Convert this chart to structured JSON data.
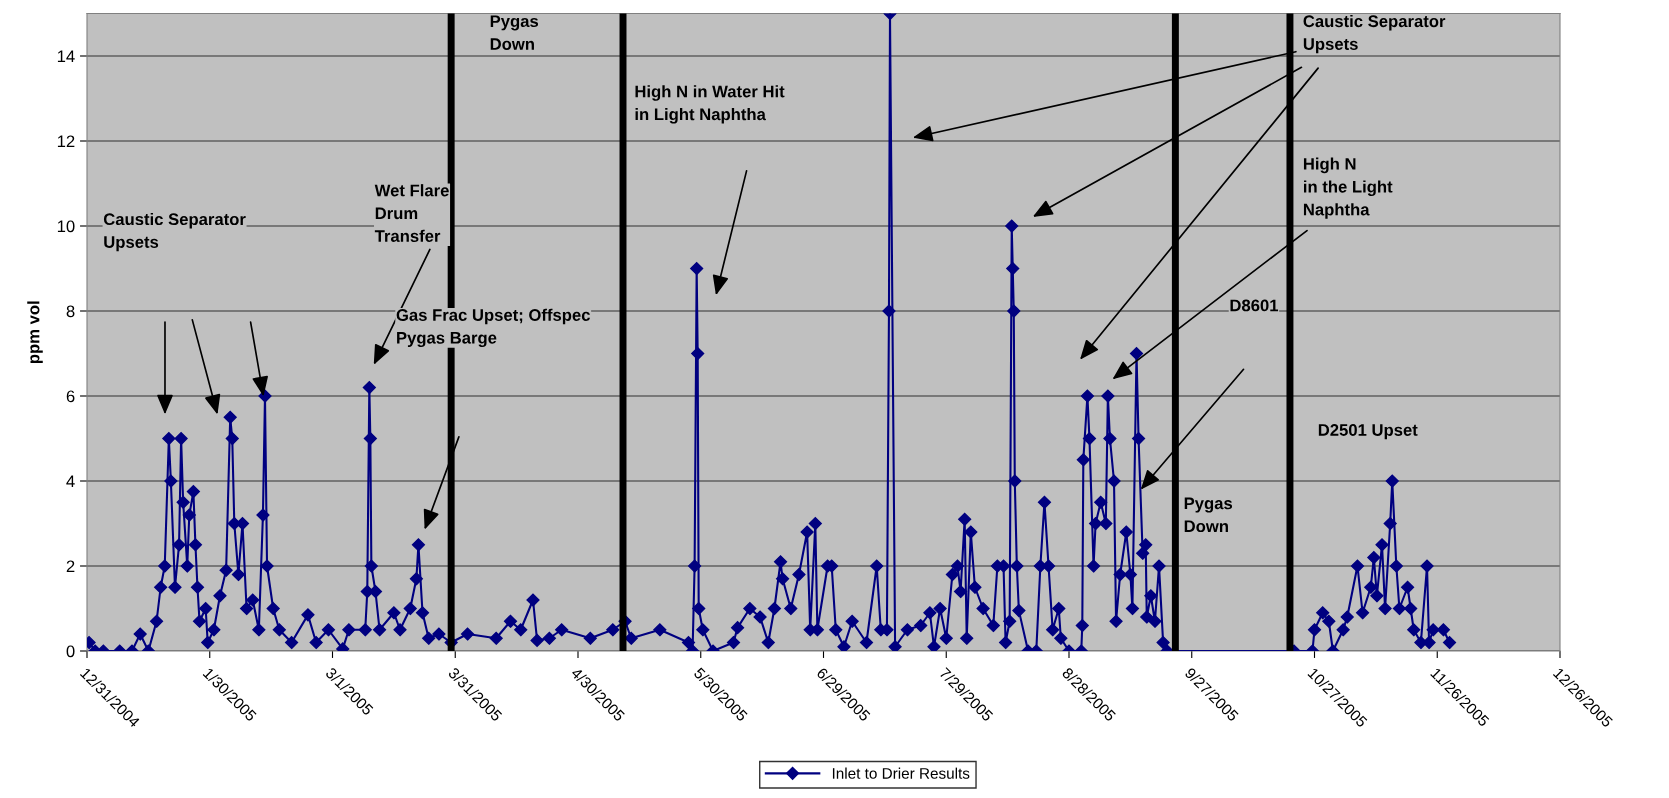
{
  "chart_data": {
    "type": "line",
    "ylabel": "ppm vol",
    "xlim": [
      "2004-12-31",
      "2005-12-26"
    ],
    "xticks": [
      {
        "value": "2004-12-31",
        "label": "12/31/2004"
      },
      {
        "value": "2005-01-30",
        "label": "1/30/2005"
      },
      {
        "value": "2005-03-01",
        "label": "3/1/2005"
      },
      {
        "value": "2005-03-31",
        "label": "3/31/2005"
      },
      {
        "value": "2005-04-30",
        "label": "4/30/2005"
      },
      {
        "value": "2005-05-30",
        "label": "5/30/2005"
      },
      {
        "value": "2005-06-29",
        "label": "6/29/2005"
      },
      {
        "value": "2005-07-29",
        "label": "7/29/2005"
      },
      {
        "value": "2005-08-28",
        "label": "8/28/2005"
      },
      {
        "value": "2005-09-27",
        "label": "9/27/2005"
      },
      {
        "value": "2005-10-27",
        "label": "10/27/2005"
      },
      {
        "value": "2005-11-26",
        "label": "11/26/2005"
      },
      {
        "value": "2005-12-26",
        "label": "12/26/2005"
      }
    ],
    "ylim": [
      0,
      15
    ],
    "yticks": [
      0,
      2,
      4,
      6,
      8,
      10,
      12,
      14
    ],
    "grid": "y",
    "legend": "bottom",
    "marker": "diamond",
    "line_style": "solid",
    "series": [
      {
        "name": "Inlet to Drier Results",
        "color": "#000080",
        "x": [
          "2004-12-31T12:00",
          "2005-01-02",
          "2005-01-04",
          "2005-01-08",
          "2005-01-11",
          "2005-01-13",
          "2005-01-15",
          "2005-01-17",
          "2005-01-18",
          "2005-01-19",
          "2005-01-20",
          "2005-01-20T12:00",
          "2005-01-21T12:00",
          "2005-01-22T12:00",
          "2005-01-23",
          "2005-01-23T12:00",
          "2005-01-24T12:00",
          "2005-01-25",
          "2005-01-26",
          "2005-01-26T12:00",
          "2005-01-27",
          "2005-01-27T12:00",
          "2005-01-29",
          "2005-01-29T12:00",
          "2005-01-31",
          "2005-02-01T12:00",
          "2005-02-03",
          "2005-02-04",
          "2005-02-04T12:00",
          "2005-02-05",
          "2005-02-06",
          "2005-02-07",
          "2005-02-08",
          "2005-02-09T12:00",
          "2005-02-11",
          "2005-02-12",
          "2005-02-12T12:00",
          "2005-02-13",
          "2005-02-14T12:00",
          "2005-02-16",
          "2005-02-19",
          "2005-02-23",
          "2005-02-25",
          "2005-02-28",
          "2005-03-03T12:00",
          "2005-03-05",
          "2005-03-09",
          "2005-03-09T12:00",
          "2005-03-10",
          "2005-03-10T06:00",
          "2005-03-10T12:00",
          "2005-03-11T12:00",
          "2005-03-12T12:00",
          "2005-03-16",
          "2005-03-17T12:00",
          "2005-03-20",
          "2005-03-21T12:00",
          "2005-03-22",
          "2005-03-23",
          "2005-03-24T12:00",
          "2005-03-27",
          "2005-03-30",
          "2005-04-03",
          "2005-04-10",
          "2005-04-13T12:00",
          "2005-04-16",
          "2005-04-19",
          "2005-04-20",
          "2005-04-23",
          "2005-04-26",
          "2005-05-03",
          "2005-05-08T12:00",
          "2005-05-11T12:00",
          "2005-05-13",
          "2005-05-20",
          "2005-05-27",
          "2005-05-28",
          "2005-05-28T12:00",
          "2005-05-29",
          "2005-05-29T06:00",
          "2005-05-29T12:00",
          "2005-05-30T12:00",
          "2005-06-02",
          "2005-06-07",
          "2005-06-08",
          "2005-06-11",
          "2005-06-13T12:00",
          "2005-06-15T12:00",
          "2005-06-17",
          "2005-06-18T12:00",
          "2005-06-19",
          "2005-06-21",
          "2005-06-23",
          "2005-06-25",
          "2005-06-25T18:00",
          "2005-06-27",
          "2005-06-27T12:00",
          "2005-06-30",
          "2005-07-01",
          "2005-07-02",
          "2005-07-04",
          "2005-07-06",
          "2005-07-09T12:00",
          "2005-07-12",
          "2005-07-13",
          "2005-07-14T12:00",
          "2005-07-15",
          "2005-07-15T06:00",
          "2005-07-16T12:00",
          "2005-07-19T12:00",
          "2005-07-22T18:00",
          "2005-07-25",
          "2005-07-26",
          "2005-07-27T12:00",
          "2005-07-29",
          "2005-07-30T12:00",
          "2005-07-31T18:00",
          "2005-08-01T12:00",
          "2005-08-02T12:00",
          "2005-08-03",
          "2005-08-04",
          "2005-08-05",
          "2005-08-07",
          "2005-08-09T12:00",
          "2005-08-10T12:00",
          "2005-08-12",
          "2005-08-12T12:00",
          "2005-08-13T12:00",
          "2005-08-14",
          "2005-08-14T06:00",
          "2005-08-14T12:00",
          "2005-08-14T18:00",
          "2005-08-15T06:00",
          "2005-08-15T18:00",
          "2005-08-18",
          "2005-08-20",
          "2005-08-21",
          "2005-08-22",
          "2005-08-23",
          "2005-08-24",
          "2005-08-25T12:00",
          "2005-08-26",
          "2005-08-28",
          "2005-08-31",
          "2005-08-31T06:00",
          "2005-08-31T12:00",
          "2005-09-01T12:00",
          "2005-09-02",
          "2005-09-03",
          "2005-09-03T12:00",
          "2005-09-04T18:00",
          "2005-09-06",
          "2005-09-06T12:00",
          "2005-09-07",
          "2005-09-08",
          "2005-09-08T12:00",
          "2005-09-09T12:00",
          "2005-09-11",
          "2005-09-12",
          "2005-09-12T12:00",
          "2005-09-13T12:00",
          "2005-09-14",
          "2005-09-15",
          "2005-09-15T18:00",
          "2005-09-16",
          "2005-09-17",
          "2005-09-18",
          "2005-09-19",
          "2005-09-20",
          "2005-09-21",
          "2005-10-22",
          "2005-10-26T12:00",
          "2005-10-27",
          "2005-10-29",
          "2005-10-30T12:00",
          "2005-10-31T12:00",
          "2005-11-03",
          "2005-11-04",
          "2005-11-06T12:00",
          "2005-11-07T18:00",
          "2005-11-09T18:00",
          "2005-11-10T12:00",
          "2005-11-11T06:00",
          "2005-11-12T12:00",
          "2005-11-13T06:00",
          "2005-11-14T12:00",
          "2005-11-15",
          "2005-11-16",
          "2005-11-16T18:00",
          "2005-11-18T18:00",
          "2005-11-19T12:00",
          "2005-11-20T06:00",
          "2005-11-22",
          "2005-11-23T12:00",
          "2005-11-24",
          "2005-11-25",
          "2005-11-27T12:00",
          "2005-11-29"
        ],
        "values": [
          0.2,
          0,
          0,
          0,
          0,
          0.4,
          0,
          0.7,
          1.5,
          2,
          5,
          4,
          1.5,
          2.5,
          5,
          3.5,
          2,
          3.2,
          3.75,
          2.5,
          1.5,
          0.7,
          1.0,
          0.2,
          0.5,
          1.3,
          1.9,
          5.5,
          5,
          3,
          1.8,
          3,
          1.0,
          1.2,
          0.5,
          3.2,
          6,
          2,
          1.0,
          0.5,
          0.2,
          0.85,
          0.2,
          0.5,
          0.05,
          0.5,
          0.5,
          1.4,
          6.2,
          5,
          2,
          1.4,
          0.5,
          0.9,
          0.5,
          1.0,
          1.7,
          2.5,
          0.9,
          0.3,
          0.4,
          0.2,
          0.4,
          0.3,
          0.7,
          0.5,
          1.2,
          0.25,
          0.3,
          0.5,
          0.3,
          0.5,
          0.7,
          0.3,
          0.5,
          0.2,
          0,
          2,
          9,
          7,
          1.0,
          0.5,
          0,
          0.2,
          0.55,
          1.0,
          0.8,
          0.2,
          1.0,
          2.1,
          1.7,
          1.0,
          1.8,
          2.8,
          0.5,
          3.0,
          0.5,
          2,
          2,
          0.5,
          0.1,
          0.7,
          0.2,
          2.0,
          0.5,
          0.5,
          8,
          15,
          0.1,
          0.5,
          0.6,
          0.9,
          0.1,
          1.0,
          0.3,
          1.8,
          2.0,
          1.4,
          3.1,
          0.3,
          2.8,
          1.5,
          1.0,
          0.6,
          2,
          2,
          0.2,
          0.7,
          10,
          9,
          8,
          4,
          2,
          0.95,
          0,
          0,
          2,
          3.5,
          2,
          0.5,
          1.0,
          0.3,
          0,
          0,
          0.6,
          4.5,
          6,
          5,
          2,
          3,
          3.5,
          3,
          6,
          5,
          4,
          0.7,
          1.8,
          2.8,
          1.8,
          1.0,
          7,
          5,
          2.3,
          2.5,
          0.8,
          1.3,
          0.7,
          2,
          0.2,
          0,
          0,
          0,
          0.5,
          0.9,
          0.7,
          0,
          0.5,
          0.8,
          2.0,
          0.9,
          1.5,
          2.2,
          1.3,
          2.5,
          1.0,
          3,
          4,
          2,
          1.0,
          1.5,
          1.0,
          0.5,
          0.2,
          2.0,
          0.2,
          0.5,
          0.5,
          0.2
        ]
      }
    ],
    "ref_lines": [
      {
        "axis": "x",
        "value": "2005-03-30",
        "color": "#000000"
      },
      {
        "axis": "x",
        "value": "2005-05-11",
        "color": "#000000"
      },
      {
        "axis": "x",
        "value": "2005-09-23",
        "color": "#000000"
      },
      {
        "axis": "x",
        "value": "2005-10-21",
        "color": "#000000"
      }
    ],
    "annotations": [
      "Caustic Separator\nUpsets",
      "Wet Flare\nDrum\nTransfer",
      "Gas Frac Upset; Offspec\nPygas Barge",
      "Pygas\nDown",
      "High N in Water Hit\nin Light Naphtha",
      "Caustic Separator\nUpsets",
      "High N\nin the Light\nNaphtha",
      "D8601",
      "Pygas\nDown",
      "D2501 Upset"
    ]
  }
}
